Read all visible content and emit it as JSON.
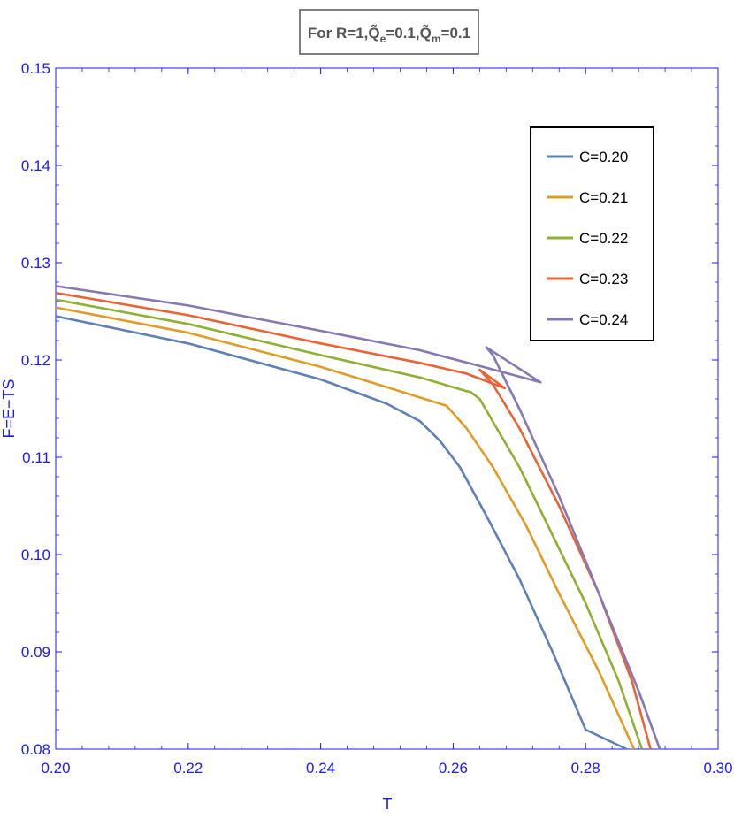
{
  "chart_data": {
    "type": "line",
    "title": "For R=1,Q̃e=0.1,Q̃m=0.1",
    "title_parts": {
      "prefix": "For R=1,",
      "qe_base": "Q̃",
      "qe_sub": "e",
      "qe_value": "=0.1,",
      "qm_base": "Q̃",
      "qm_sub": "m",
      "qm_value": "=0.1"
    },
    "xlabel": "T",
    "ylabel": "F=E−TS",
    "xlim": [
      0.2,
      0.3
    ],
    "ylim": [
      0.08,
      0.15
    ],
    "x_ticks": [
      0.2,
      0.22,
      0.24,
      0.26,
      0.28,
      0.3
    ],
    "x_tick_labels": [
      "0.20",
      "0.22",
      "0.24",
      "0.26",
      "0.28",
      "0.30"
    ],
    "y_ticks": [
      0.08,
      0.09,
      0.1,
      0.11,
      0.12,
      0.13,
      0.14,
      0.15
    ],
    "y_tick_labels": [
      "0.08",
      "0.09",
      "0.10",
      "0.11",
      "0.12",
      "0.13",
      "0.14",
      "0.15"
    ],
    "grid": false,
    "legend_position": "top-right",
    "series": [
      {
        "name": "C=0.20",
        "color": "#5e81b5",
        "points": [
          [
            0.2,
            0.1245
          ],
          [
            0.22,
            0.1217
          ],
          [
            0.24,
            0.118
          ],
          [
            0.25,
            0.1155
          ],
          [
            0.255,
            0.1137
          ],
          [
            0.258,
            0.1117
          ],
          [
            0.261,
            0.109
          ],
          [
            0.265,
            0.104
          ],
          [
            0.27,
            0.0975
          ],
          [
            0.275,
            0.09
          ],
          [
            0.28,
            0.082
          ],
          [
            0.2862,
            0.08
          ]
        ]
      },
      {
        "name": "C=0.21",
        "color": "#e19c24",
        "points": [
          [
            0.2,
            0.1254
          ],
          [
            0.22,
            0.1228
          ],
          [
            0.24,
            0.1193
          ],
          [
            0.25,
            0.1172
          ],
          [
            0.259,
            0.1153
          ],
          [
            0.262,
            0.113
          ],
          [
            0.266,
            0.109
          ],
          [
            0.271,
            0.103
          ],
          [
            0.276,
            0.096
          ],
          [
            0.282,
            0.088
          ],
          [
            0.2873,
            0.08
          ]
        ]
      },
      {
        "name": "C=0.22",
        "color": "#8fb032",
        "points": [
          [
            0.2,
            0.1262
          ],
          [
            0.22,
            0.1237
          ],
          [
            0.24,
            0.1205
          ],
          [
            0.255,
            0.1182
          ],
          [
            0.262,
            0.1168
          ],
          [
            0.2627,
            0.1167
          ],
          [
            0.2632,
            0.1164
          ],
          [
            0.264,
            0.116
          ],
          [
            0.267,
            0.1125
          ],
          [
            0.27,
            0.109
          ],
          [
            0.275,
            0.102
          ],
          [
            0.28,
            0.095
          ],
          [
            0.285,
            0.087
          ],
          [
            0.2885,
            0.08
          ]
        ]
      },
      {
        "name": "C=0.23",
        "color": "#eb6235",
        "points": [
          [
            0.2,
            0.1269
          ],
          [
            0.22,
            0.1246
          ],
          [
            0.24,
            0.1217
          ],
          [
            0.255,
            0.1197
          ],
          [
            0.262,
            0.1186
          ],
          [
            0.2678,
            0.1171
          ],
          [
            0.264,
            0.119
          ],
          [
            0.266,
            0.1175
          ],
          [
            0.27,
            0.113
          ],
          [
            0.276,
            0.105
          ],
          [
            0.282,
            0.096
          ],
          [
            0.287,
            0.087
          ],
          [
            0.2898,
            0.08
          ]
        ]
      },
      {
        "name": "C=0.24",
        "color": "#8778b3",
        "points": [
          [
            0.2,
            0.1276
          ],
          [
            0.22,
            0.1256
          ],
          [
            0.24,
            0.123
          ],
          [
            0.255,
            0.121
          ],
          [
            0.265,
            0.1192
          ],
          [
            0.2732,
            0.1177
          ],
          [
            0.265,
            0.1213
          ],
          [
            0.266,
            0.1205
          ],
          [
            0.27,
            0.115
          ],
          [
            0.276,
            0.106
          ],
          [
            0.282,
            0.096
          ],
          [
            0.288,
            0.086
          ],
          [
            0.2912,
            0.08
          ]
        ]
      }
    ]
  }
}
